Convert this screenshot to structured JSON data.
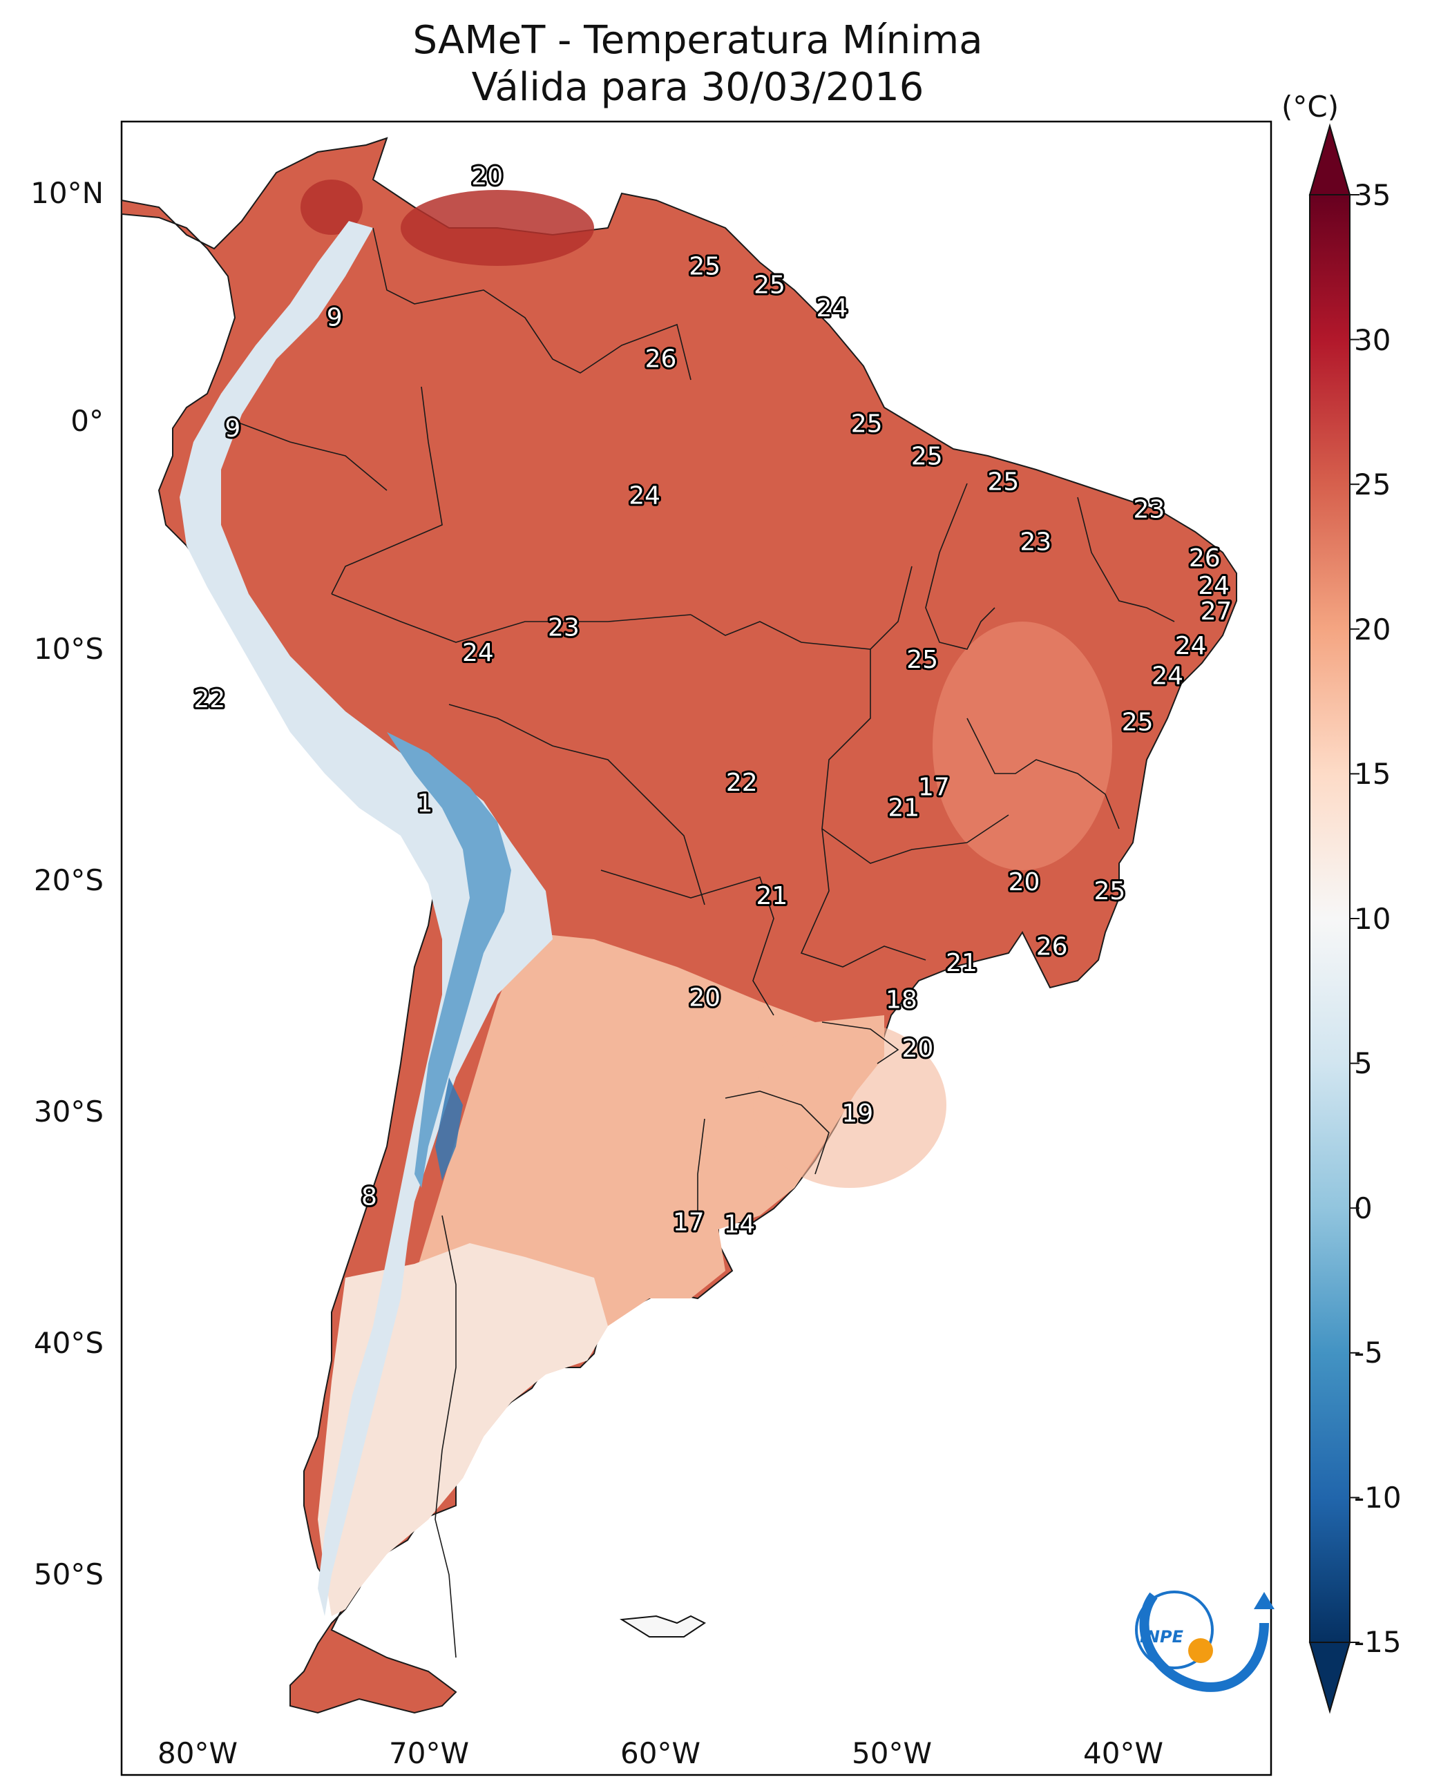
{
  "title": "SAMeT - Temperatura Mínima",
  "subtitle": "Válida para 30/03/2016",
  "logo_text": "INPE",
  "colorbar": {
    "unit": "(°C)",
    "ticks": [
      "35",
      "30",
      "25",
      "20",
      "15",
      "10",
      "5",
      "0",
      "-5",
      "-10",
      "-15"
    ],
    "min": -15,
    "max": 35,
    "colormap": [
      "#053061",
      "#2166ac",
      "#4393c3",
      "#92c5de",
      "#d1e5f0",
      "#f7f7f7",
      "#fddbc7",
      "#f4a582",
      "#d6604d",
      "#b2182b",
      "#67001f"
    ]
  },
  "axes": {
    "lat_ticks": [
      "10°N",
      "0°",
      "10°S",
      "20°S",
      "30°S",
      "40°S",
      "50°S"
    ],
    "lon_ticks": [
      "80°W",
      "70°W",
      "60°W",
      "50°W",
      "40°W"
    ]
  },
  "map_labels": [
    {
      "text": "20",
      "lon": -67.2,
      "lat": 10.7
    },
    {
      "text": "9",
      "lon": -73.8,
      "lat": 4.6
    },
    {
      "text": "9",
      "lon": -78.2,
      "lat": -0.2
    },
    {
      "text": "25",
      "lon": -57.8,
      "lat": 6.8
    },
    {
      "text": "25",
      "lon": -55.0,
      "lat": 6.0
    },
    {
      "text": "24",
      "lon": -52.3,
      "lat": 5.0
    },
    {
      "text": "26",
      "lon": -59.7,
      "lat": 2.8
    },
    {
      "text": "25",
      "lon": -50.8,
      "lat": 0.0
    },
    {
      "text": "25",
      "lon": -48.2,
      "lat": -1.4
    },
    {
      "text": "25",
      "lon": -44.9,
      "lat": -2.5
    },
    {
      "text": "24",
      "lon": -60.4,
      "lat": -3.1
    },
    {
      "text": "23",
      "lon": -38.6,
      "lat": -3.7
    },
    {
      "text": "23",
      "lon": -43.5,
      "lat": -5.1
    },
    {
      "text": "26",
      "lon": -36.2,
      "lat": -5.8
    },
    {
      "text": "24",
      "lon": -35.8,
      "lat": -7.0
    },
    {
      "text": "27",
      "lon": -35.7,
      "lat": -8.1
    },
    {
      "text": "23",
      "lon": -63.9,
      "lat": -8.8
    },
    {
      "text": "24",
      "lon": -67.6,
      "lat": -9.9
    },
    {
      "text": "24",
      "lon": -36.8,
      "lat": -9.6
    },
    {
      "text": "25",
      "lon": -48.4,
      "lat": -10.2
    },
    {
      "text": "24",
      "lon": -37.8,
      "lat": -10.9
    },
    {
      "text": "22",
      "lon": -79.2,
      "lat": -11.9
    },
    {
      "text": "25",
      "lon": -39.1,
      "lat": -12.9
    },
    {
      "text": "22",
      "lon": -56.2,
      "lat": -15.5
    },
    {
      "text": "17",
      "lon": -47.9,
      "lat": -15.7
    },
    {
      "text": "1",
      "lon": -69.9,
      "lat": -16.4
    },
    {
      "text": "21",
      "lon": -49.2,
      "lat": -16.6
    },
    {
      "text": "20",
      "lon": -44.0,
      "lat": -19.8
    },
    {
      "text": "25",
      "lon": -40.3,
      "lat": -20.2
    },
    {
      "text": "21",
      "lon": -54.9,
      "lat": -20.4
    },
    {
      "text": "26",
      "lon": -42.8,
      "lat": -22.6
    },
    {
      "text": "21",
      "lon": -46.7,
      "lat": -23.3
    },
    {
      "text": "20",
      "lon": -57.8,
      "lat": -24.8
    },
    {
      "text": "18",
      "lon": -49.3,
      "lat": -24.9
    },
    {
      "text": "20",
      "lon": -48.6,
      "lat": -27.0
    },
    {
      "text": "19",
      "lon": -51.2,
      "lat": -29.8
    },
    {
      "text": "8",
      "lon": -72.3,
      "lat": -33.4
    },
    {
      "text": "17",
      "lon": -58.5,
      "lat": -34.5
    },
    {
      "text": "14",
      "lon": -56.3,
      "lat": -34.6
    }
  ]
}
